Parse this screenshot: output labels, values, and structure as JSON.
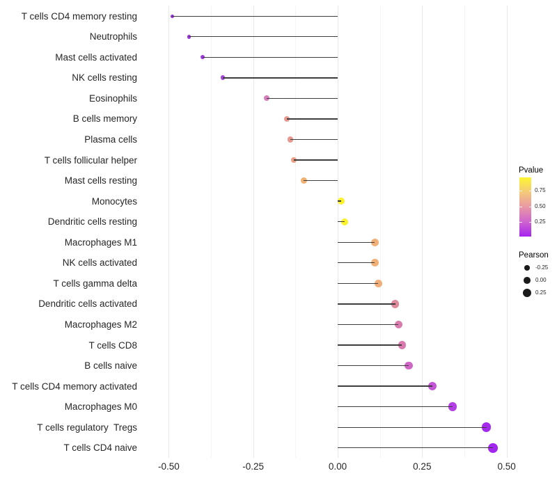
{
  "chart_data": {
    "type": "lollipop",
    "title": "",
    "xlabel": "",
    "ylabel": "",
    "grid": "vertical-only",
    "x_axis": {
      "range": [
        -0.573,
        0.527
      ],
      "ticks": [
        -0.5,
        -0.25,
        0.0,
        0.25,
        0.5
      ],
      "tick_labels": [
        "-0.50",
        "-0.25",
        "0.00",
        "0.25",
        "0.50"
      ],
      "minor_gridlines": [
        -0.375,
        -0.125,
        0.125,
        0.375
      ]
    },
    "rows": [
      {
        "label": "T cells CD4 memory resting",
        "pearson": -0.49,
        "pvalue_est": 0.05,
        "color": "#9430db"
      },
      {
        "label": "Neutrophils",
        "pearson": -0.44,
        "pvalue_est": 0.06,
        "color": "#9b35dd"
      },
      {
        "label": "Mast cells activated",
        "pearson": -0.4,
        "pvalue_est": 0.07,
        "color": "#9d38dd"
      },
      {
        "label": "NK cells resting",
        "pearson": -0.34,
        "pvalue_est": 0.1,
        "color": "#a846db"
      },
      {
        "label": "Eosinophils",
        "pearson": -0.21,
        "pvalue_est": 0.38,
        "color": "#d87ebc"
      },
      {
        "label": "B cells memory",
        "pearson": -0.15,
        "pvalue_est": 0.5,
        "color": "#e8998f"
      },
      {
        "label": "Plasma cells",
        "pearson": -0.14,
        "pvalue_est": 0.5,
        "color": "#e8998f"
      },
      {
        "label": "T cells follicular helper",
        "pearson": -0.13,
        "pvalue_est": 0.53,
        "color": "#ea9f85"
      },
      {
        "label": "Mast cells resting",
        "pearson": -0.1,
        "pvalue_est": 0.6,
        "color": "#f0b173"
      },
      {
        "label": "Monocytes",
        "pearson": 0.01,
        "pvalue_est": 0.93,
        "color": "#faf22c"
      },
      {
        "label": "Dendritic cells resting",
        "pearson": 0.02,
        "pvalue_est": 0.92,
        "color": "#faf22c"
      },
      {
        "label": "Macrophages M1",
        "pearson": 0.11,
        "pvalue_est": 0.61,
        "color": "#f1b077"
      },
      {
        "label": "NK cells activated",
        "pearson": 0.11,
        "pvalue_est": 0.6,
        "color": "#f1b077"
      },
      {
        "label": "T cells gamma delta",
        "pearson": 0.12,
        "pvalue_est": 0.59,
        "color": "#f1ae7a"
      },
      {
        "label": "Dendritic cells activated",
        "pearson": 0.17,
        "pvalue_est": 0.44,
        "color": "#dd8a9c"
      },
      {
        "label": "Macrophages M2",
        "pearson": 0.18,
        "pvalue_est": 0.37,
        "color": "#d97bad"
      },
      {
        "label": "T cells CD8",
        "pearson": 0.19,
        "pvalue_est": 0.37,
        "color": "#d97bad"
      },
      {
        "label": "B cells naive",
        "pearson": 0.21,
        "pvalue_est": 0.29,
        "color": "#d066c4"
      },
      {
        "label": "T cells CD4 memory activated",
        "pearson": 0.28,
        "pvalue_est": 0.21,
        "color": "#c355d6"
      },
      {
        "label": "Macrophages M0",
        "pearson": 0.34,
        "pvalue_est": 0.13,
        "color": "#b23fe4"
      },
      {
        "label": "T cells regulatory  Tregs",
        "pearson": 0.44,
        "pvalue_est": 0.04,
        "color": "#a52bec"
      },
      {
        "label": "T cells CD4 naive",
        "pearson": 0.46,
        "pvalue_est": 0.03,
        "color": "#a326ee"
      }
    ],
    "legend": {
      "pvalue": {
        "title": "Pvalue",
        "tick_values": [
          0.75,
          0.5,
          0.25
        ],
        "tick_labels": [
          "0.75",
          "0.50",
          "0.25"
        ],
        "bar_range": [
          0.02,
          0.96
        ],
        "gradient_bottom_to_top": [
          "#a522f0",
          "#cf64ce",
          "#e997a4",
          "#f5c97b",
          "#fcf532"
        ]
      },
      "pearson": {
        "title": "Pearson",
        "entries": [
          {
            "label": "-0.25",
            "value": -0.25
          },
          {
            "label": "0.00",
            "value": 0.0
          },
          {
            "label": "0.25",
            "value": 0.25
          }
        ],
        "dot_color": "#1a1a1a"
      }
    },
    "style": {
      "stem_color": "#3d3d3d",
      "major_grid_color": "#e7e7e7",
      "minor_grid_color": "#f4f4f4",
      "axis_text_color": "#262626",
      "background": "#ffffff"
    }
  }
}
